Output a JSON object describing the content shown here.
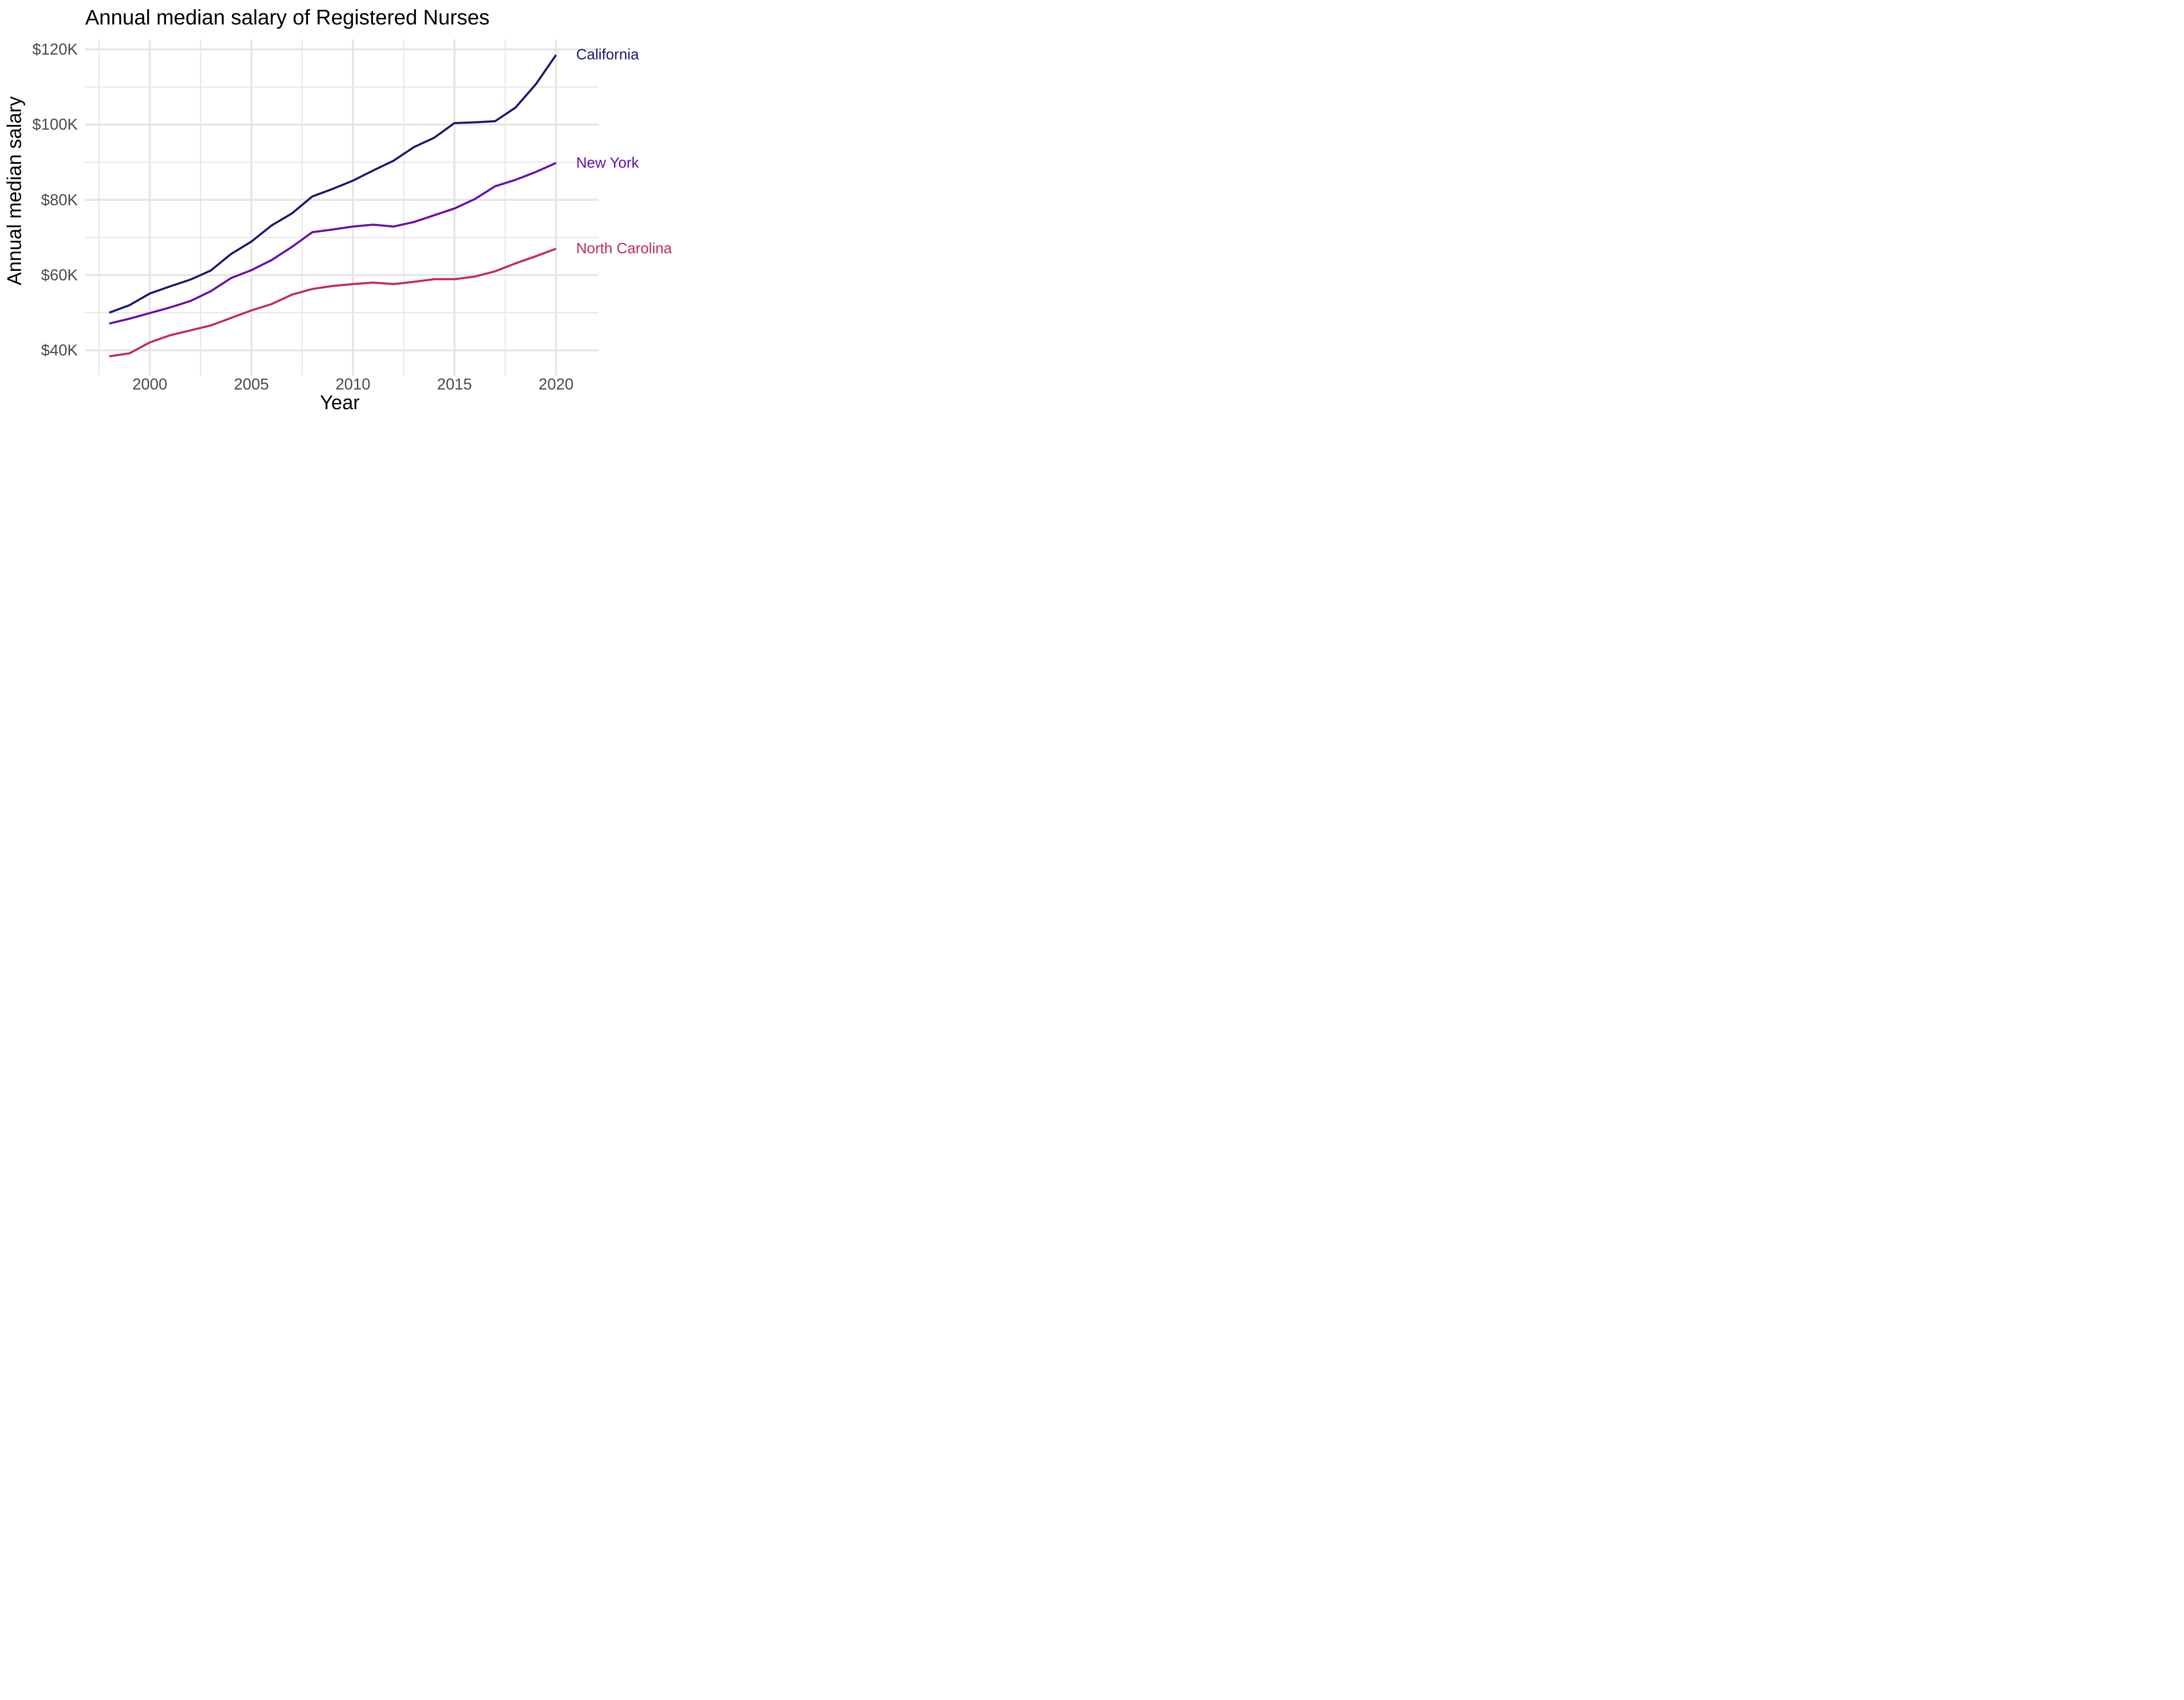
{
  "chart_data": {
    "type": "line",
    "title": "Annual median salary of Registered Nurses",
    "xlabel": "Year",
    "ylabel": "Annual median salary",
    "units": "USD thousands",
    "x": [
      1998,
      1999,
      2000,
      2001,
      2002,
      2003,
      2004,
      2005,
      2006,
      2007,
      2008,
      2009,
      2010,
      2011,
      2012,
      2013,
      2014,
      2015,
      2016,
      2017,
      2018,
      2019,
      2020
    ],
    "series": [
      {
        "name": "California",
        "color": "#191970",
        "values": [
          50.0,
          52.0,
          55.1,
          57.0,
          58.8,
          61.2,
          65.6,
          68.9,
          73.2,
          76.4,
          80.9,
          82.9,
          85.1,
          87.8,
          90.4,
          94.0,
          96.5,
          100.4,
          100.6,
          100.9,
          104.5,
          110.7,
          118.5
        ]
      },
      {
        "name": "New York",
        "color": "#6A0DAD",
        "values": [
          47.1,
          48.4,
          49.9,
          51.4,
          53.1,
          55.7,
          59.2,
          61.3,
          64.0,
          67.5,
          71.4,
          72.1,
          72.9,
          73.4,
          72.9,
          74.1,
          75.9,
          77.7,
          80.2,
          83.6,
          85.3,
          87.4,
          89.8
        ]
      },
      {
        "name": "North Carolina",
        "color": "#C32A5C",
        "values": [
          38.4,
          39.2,
          42.1,
          44.0,
          45.3,
          46.6,
          48.6,
          50.6,
          52.3,
          54.8,
          56.3,
          57.1,
          57.6,
          58.0,
          57.6,
          58.2,
          58.9,
          58.9,
          59.6,
          61.0,
          63.1,
          65.0,
          67.0
        ]
      }
    ],
    "y_ticks": [
      {
        "value": 120,
        "label": "$120K"
      },
      {
        "value": 100,
        "label": "$100K"
      },
      {
        "value": 80,
        "label": "$80K"
      },
      {
        "value": 60,
        "label": "$60K"
      },
      {
        "value": 40,
        "label": "$40K"
      }
    ],
    "y_minor": [
      110,
      90,
      70,
      50
    ],
    "x_ticks": [
      {
        "value": 2000,
        "label": "2000"
      },
      {
        "value": 2005,
        "label": "2005"
      },
      {
        "value": 2010,
        "label": "2010"
      },
      {
        "value": 2015,
        "label": "2015"
      },
      {
        "value": 2020,
        "label": "2020"
      }
    ],
    "x_minor": [
      1997.5,
      2002.5,
      2007.5,
      2012.5,
      2017.5
    ],
    "xlim": [
      1996.8,
      2022.1
    ],
    "ylim": [
      33.3,
      122.7
    ],
    "grid": true,
    "legend_position": "labels at right ends of lines",
    "style": {
      "background": "#ffffff",
      "grid_color": "#E5E5E5",
      "tick_text_color": "#4a4a4a",
      "title_color": "#000000"
    }
  }
}
